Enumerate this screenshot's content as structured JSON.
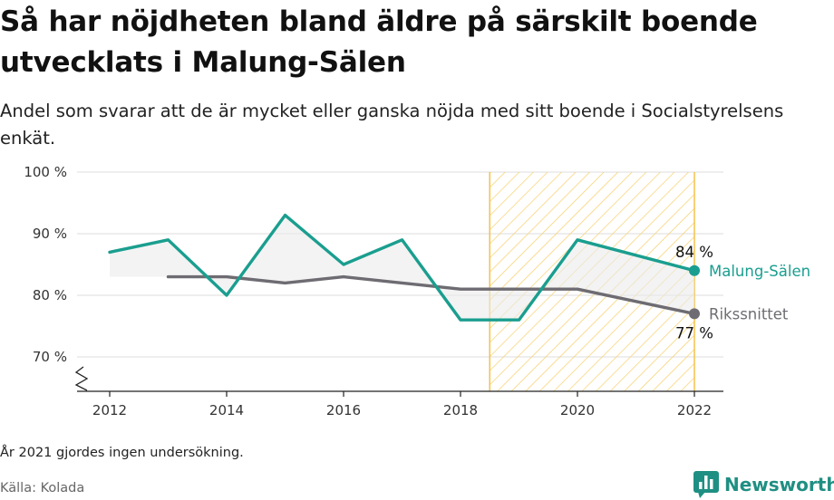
{
  "header": {
    "title": "Så har nöjdheten bland äldre på särskilt boende utvecklats i Malung-Sälen",
    "subtitle": "Andel som svarar att de är mycket eller ganska nöjda med sitt boende i Socialstyrelsens enkät."
  },
  "footer": {
    "note": "År 2021 gjordes ingen undersökning.",
    "source": "Källa: Kolada",
    "brand": "Newsworthy"
  },
  "colors": {
    "malung": "#1a9e8f",
    "riket": "#6e6c72",
    "highlight_stroke": "#f5c24a",
    "grid": "#dddddd"
  },
  "icons": {
    "logo": "newsworthy-bar-chart-speech-bubble-icon"
  },
  "chart_data": {
    "type": "line",
    "xlim": [
      2011.5,
      2022.5
    ],
    "ylim": [
      65,
      100
    ],
    "y_ticks": [
      {
        "value": 100,
        "label": "100 %"
      },
      {
        "value": 90,
        "label": "90 %"
      },
      {
        "value": 80,
        "label": "80 %"
      },
      {
        "value": 70,
        "label": "70 %"
      }
    ],
    "x_ticks": [
      {
        "value": 2012,
        "label": "2012"
      },
      {
        "value": 2014,
        "label": "2014"
      },
      {
        "value": 2016,
        "label": "2016"
      },
      {
        "value": 2018,
        "label": "2018"
      },
      {
        "value": 2020,
        "label": "2020"
      },
      {
        "value": 2022,
        "label": "2022"
      }
    ],
    "highlight_range": [
      2018.5,
      2022
    ],
    "axis_break": true,
    "series": [
      {
        "name": "Malung-Sälen",
        "color": "#1a9e8f",
        "x": [
          2012,
          2013,
          2014,
          2015,
          2016,
          2017,
          2018,
          2019,
          2020,
          2022
        ],
        "y": [
          87,
          89,
          80,
          93,
          85,
          89,
          76,
          76,
          89,
          84
        ],
        "end_label": "84 %"
      },
      {
        "name": "Rikssnittet",
        "color": "#6e6c72",
        "x": [
          2013,
          2014,
          2015,
          2016,
          2017,
          2018,
          2019,
          2020,
          2022
        ],
        "y": [
          83,
          83,
          82,
          83,
          82,
          81,
          81,
          81,
          77
        ],
        "end_label": "77 %"
      }
    ]
  }
}
